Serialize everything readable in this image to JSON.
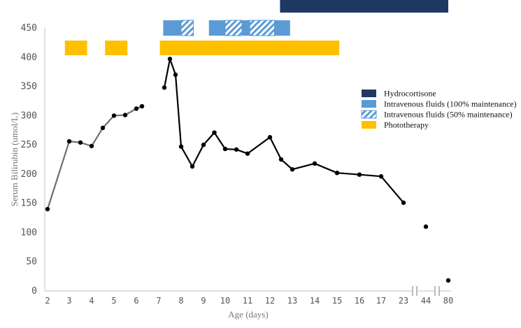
{
  "chart_data": {
    "type": "line",
    "xlabel": "Age (days)",
    "ylabel": "Serum Bilirubin (umol/L)",
    "ylim": [
      0,
      450
    ],
    "yticks": [
      0,
      50,
      100,
      150,
      200,
      250,
      300,
      350,
      400,
      450
    ],
    "x_tick_labels": [
      "2",
      "3",
      "4",
      "5",
      "6",
      "7",
      "8",
      "9",
      "10",
      "11",
      "12",
      "13",
      "14",
      "15",
      "16",
      "17",
      "23",
      "44",
      "80"
    ],
    "axis_breaks": [
      "between 23 and 44",
      "between 44 and 80"
    ],
    "grid": false,
    "legend_position": "right",
    "series": [
      {
        "style": "gray-line",
        "color": "#6e6e6e",
        "points": [
          {
            "x": "2",
            "y": 140
          },
          {
            "x": "3",
            "y": 256
          },
          {
            "x": "3.5",
            "y": 254
          },
          {
            "x": "4",
            "y": 248
          },
          {
            "x": "4.5",
            "y": 279
          },
          {
            "x": "5",
            "y": 300
          },
          {
            "x": "5.5",
            "y": 301
          },
          {
            "x": "6",
            "y": 312
          },
          {
            "x": "6.25",
            "y": 316
          }
        ]
      },
      {
        "style": "black-line",
        "color": "#000000",
        "points": [
          {
            "x": "7.25",
            "y": 348
          },
          {
            "x": "7.5",
            "y": 397
          },
          {
            "x": "7.75",
            "y": 370
          },
          {
            "x": "8",
            "y": 247
          },
          {
            "x": "8.5",
            "y": 213
          },
          {
            "x": "9",
            "y": 250
          },
          {
            "x": "9.5",
            "y": 271
          },
          {
            "x": "10",
            "y": 243
          },
          {
            "x": "10.5",
            "y": 242
          },
          {
            "x": "11",
            "y": 235
          },
          {
            "x": "12",
            "y": 263
          },
          {
            "x": "12.5",
            "y": 225
          },
          {
            "x": "13",
            "y": 208
          },
          {
            "x": "14",
            "y": 218
          },
          {
            "x": "15",
            "y": 202
          },
          {
            "x": "16",
            "y": 199
          },
          {
            "x": "17",
            "y": 196
          },
          {
            "x": "23",
            "y": 151
          }
        ]
      },
      {
        "style": "black-points",
        "color": "#000000",
        "points": [
          {
            "x": "44",
            "y": 110
          },
          {
            "x": "80",
            "y": 18
          }
        ]
      }
    ],
    "treatments": [
      {
        "type": "phototherapy",
        "start": "2.8",
        "end": "3.8"
      },
      {
        "type": "phototherapy",
        "start": "4.6",
        "end": "5.6"
      },
      {
        "type": "phototherapy",
        "start": "7.05",
        "end": "15.1"
      },
      {
        "type": "iv100",
        "start": "7.2",
        "end": "8.0"
      },
      {
        "type": "iv50",
        "start": "8.0",
        "end": "8.55"
      },
      {
        "type": "iv100",
        "start": "9.25",
        "end": "10.0"
      },
      {
        "type": "iv50",
        "start": "10.0",
        "end": "10.75"
      },
      {
        "type": "iv100",
        "start": "10.75",
        "end": "11.1"
      },
      {
        "type": "iv50",
        "start": "11.1",
        "end": "12.2"
      },
      {
        "type": "iv100",
        "start": "12.2",
        "end": "12.9"
      },
      {
        "type": "hydrocortisone",
        "start": "12.45",
        "end": "80"
      }
    ],
    "legend": [
      {
        "type": "hydrocortisone",
        "label": "Hydrocortisone",
        "color": "#1f3864"
      },
      {
        "type": "iv100",
        "label": "Intravenous fluids (100% maintenance)",
        "color": "#5b9bd5"
      },
      {
        "type": "iv50",
        "label": "Intravenous fluids (50% maintenance)",
        "color": "#5b9bd5"
      },
      {
        "type": "phototherapy",
        "label": "Phototherapy",
        "color": "#ffc000"
      }
    ]
  }
}
